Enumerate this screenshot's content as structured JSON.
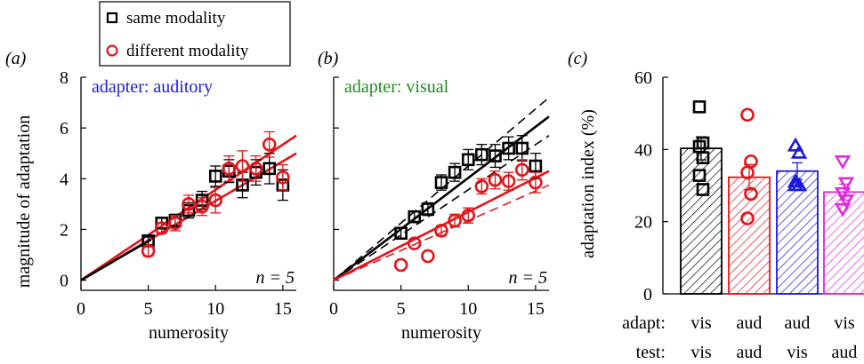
{
  "legend": {
    "items": [
      {
        "label": "same modality",
        "marker": "square",
        "color": "#000000"
      },
      {
        "label": "different modality",
        "marker": "circle",
        "color": "#e0161b"
      }
    ]
  },
  "colors": {
    "black": "#000000",
    "red": "#e0161b",
    "blue": "#1a1adf",
    "green": "#1f8a1f",
    "magenta": "#e02ad8"
  },
  "chart_data": [
    {
      "panel_label": "(a)",
      "type": "scatter",
      "annotation": "adapter: auditory",
      "annotation_color": "#1a1adf",
      "n_label": "n = 5",
      "xlabel": "numerosity",
      "ylabel": "magnitude of adaptation",
      "xlim": [
        0,
        16
      ],
      "ylim": [
        -0.4,
        8
      ],
      "xticks": [
        0,
        5,
        10,
        15
      ],
      "yticks": [
        0,
        2,
        4,
        6,
        8
      ],
      "series": [
        {
          "name": "same modality",
          "marker": "square",
          "color": "#000000",
          "x": [
            5,
            6,
            7,
            8,
            9,
            10,
            11,
            12,
            13,
            14,
            15
          ],
          "y": [
            1.55,
            2.25,
            2.35,
            2.75,
            3.15,
            4.1,
            4.3,
            3.75,
            4.25,
            4.4,
            3.75
          ],
          "err": [
            0.15,
            0.2,
            0.25,
            0.3,
            0.35,
            0.4,
            0.45,
            0.5,
            0.5,
            0.6,
            0.6
          ]
        },
        {
          "name": "different modality",
          "marker": "circle",
          "color": "#e0161b",
          "x": [
            5,
            6,
            7,
            8,
            9,
            10,
            11,
            12,
            13,
            14,
            15
          ],
          "y": [
            1.15,
            2.05,
            2.25,
            3.0,
            2.9,
            3.15,
            4.4,
            4.5,
            4.4,
            5.35,
            4.05
          ],
          "err": [
            0.2,
            0.2,
            0.3,
            0.35,
            0.35,
            0.5,
            0.5,
            0.6,
            0.5,
            0.5,
            0.5
          ]
        }
      ],
      "fit_lines": [
        {
          "color": "#e0161b",
          "style": "solid",
          "x": [
            0,
            16
          ],
          "y": [
            0,
            5.7
          ]
        },
        {
          "color": "#e0161b",
          "style": "solid",
          "x": [
            0,
            16
          ],
          "y": [
            0,
            5.0
          ]
        },
        {
          "color": "#000000",
          "style": "solid",
          "x": [
            0,
            5.2
          ],
          "y": [
            0,
            1.6
          ]
        }
      ]
    },
    {
      "panel_label": "(b)",
      "type": "scatter",
      "annotation": "adapter: visual",
      "annotation_color": "#1f8a1f",
      "n_label": "n = 5",
      "xlabel": "numerosity",
      "ylabel": "",
      "xlim": [
        0,
        16
      ],
      "ylim": [
        -0.4,
        8
      ],
      "xticks": [
        0,
        5,
        10,
        15
      ],
      "yticks": [
        0,
        2,
        4,
        6,
        8
      ],
      "series": [
        {
          "name": "same modality",
          "marker": "square",
          "color": "#000000",
          "x": [
            5,
            6,
            7,
            8,
            9,
            10,
            11,
            12,
            13,
            14,
            15
          ],
          "y": [
            1.85,
            2.5,
            2.8,
            3.85,
            4.25,
            4.75,
            4.95,
            4.9,
            5.2,
            5.2,
            4.5
          ],
          "err": [
            0.2,
            0.2,
            0.25,
            0.3,
            0.35,
            0.4,
            0.4,
            0.45,
            0.45,
            0.5,
            0.5
          ]
        },
        {
          "name": "different modality",
          "marker": "circle",
          "color": "#e0161b",
          "x": [
            5,
            6,
            7,
            8,
            9,
            10,
            11,
            12,
            13,
            14,
            15
          ],
          "y": [
            0.6,
            1.45,
            0.95,
            1.95,
            2.35,
            2.55,
            3.7,
            3.95,
            3.9,
            4.35,
            3.85
          ],
          "err": [
            0.0,
            0.0,
            0.0,
            0.2,
            0.25,
            0.3,
            0.3,
            0.35,
            0.35,
            0.4,
            0.4
          ]
        }
      ],
      "fit_lines": [
        {
          "color": "#000000",
          "style": "solid",
          "x": [
            0,
            16
          ],
          "y": [
            0,
            6.45
          ]
        },
        {
          "color": "#000000",
          "style": "dashed",
          "x": [
            0,
            16
          ],
          "y": [
            0,
            7.2
          ]
        },
        {
          "color": "#000000",
          "style": "dashed",
          "x": [
            0,
            16
          ],
          "y": [
            0,
            5.7
          ]
        },
        {
          "color": "#e0161b",
          "style": "solid",
          "x": [
            0,
            16
          ],
          "y": [
            0,
            4.3
          ]
        },
        {
          "color": "#e0161b",
          "style": "dashed",
          "x": [
            0,
            16
          ],
          "y": [
            0,
            3.75
          ]
        }
      ]
    },
    {
      "panel_label": "(c)",
      "type": "bar",
      "ylabel": "adaptation index (%)",
      "ylim": [
        0,
        60
      ],
      "yticks": [
        0,
        20,
        40,
        60
      ],
      "row_labels": [
        "adapt:",
        "test:"
      ],
      "categories": [
        {
          "adapt": "vis",
          "test": "vis"
        },
        {
          "adapt": "aud",
          "test": "aud"
        },
        {
          "adapt": "aud",
          "test": "vis"
        },
        {
          "adapt": "vis",
          "test": "aud"
        }
      ],
      "values": [
        40.3,
        32.3,
        34.0,
        28.2
      ],
      "errors": [
        3.2,
        3.5,
        2.3,
        2.2
      ],
      "bar_colors": [
        "#000000",
        "#e0161b",
        "#1a1adf",
        "#e02ad8"
      ],
      "markers": [
        "square",
        "circle",
        "triangle-up",
        "triangle-down"
      ],
      "points": [
        [
          51.8,
          41.8,
          40.8,
          37.7,
          32.8,
          28.9
        ],
        [
          49.6,
          36.7,
          33.6,
          27.7,
          20.9
        ],
        [
          41.0,
          39.0,
          31.0,
          30.0,
          30.0
        ],
        [
          36.8,
          30.8,
          28.0,
          26.0,
          23.6
        ]
      ]
    }
  ]
}
